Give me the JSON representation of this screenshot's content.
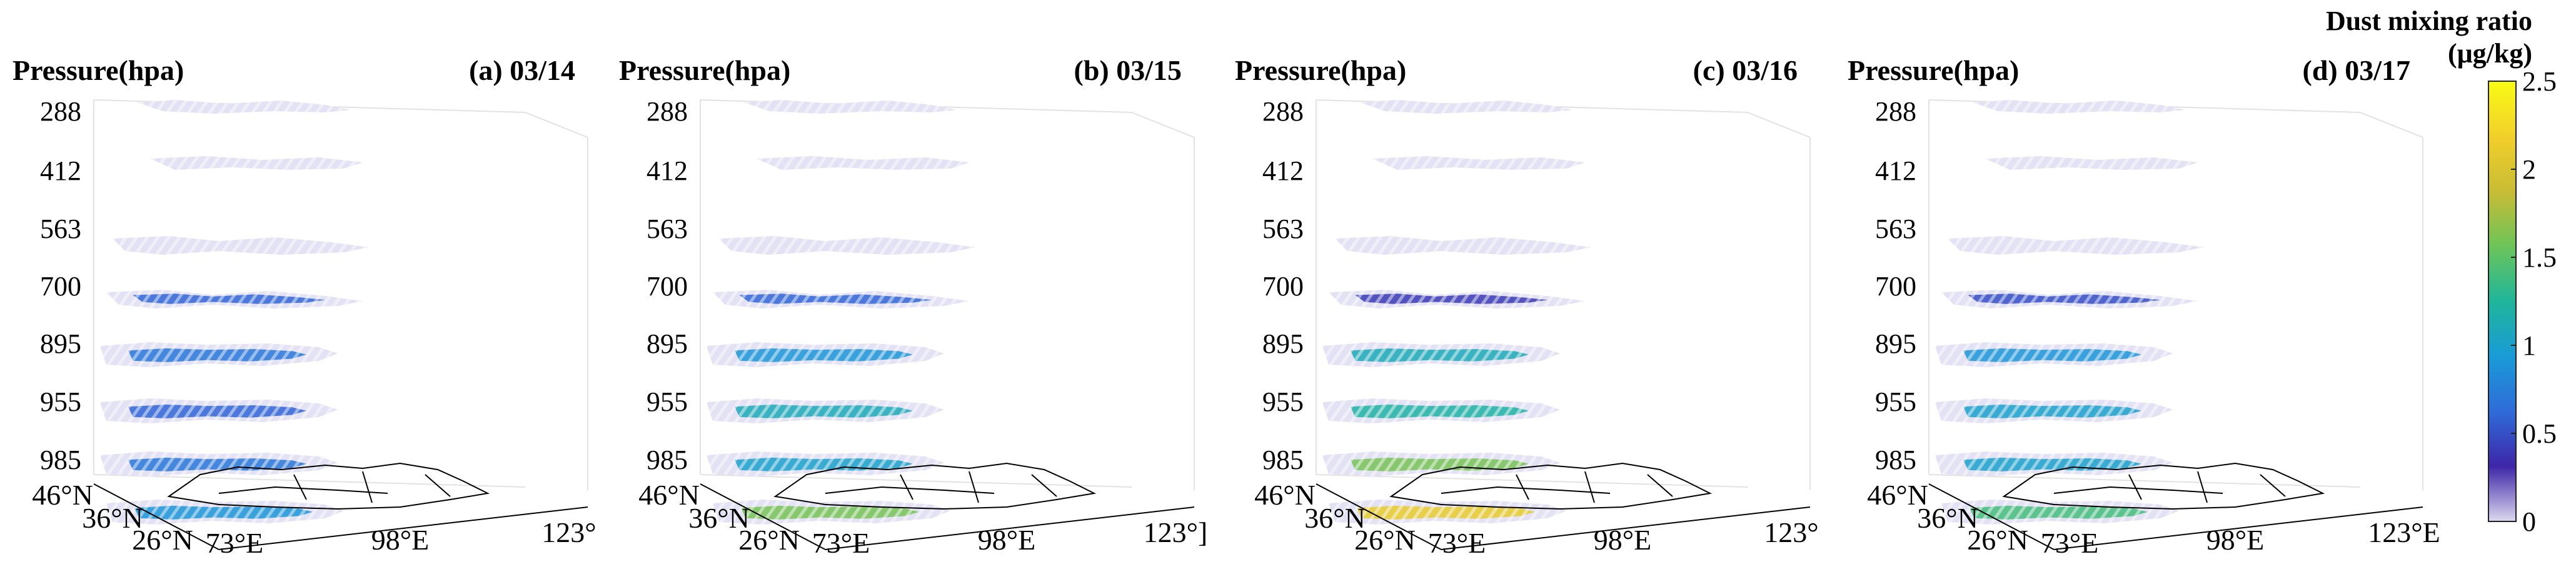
{
  "chart_data": [
    {
      "type": "3d-layered-contour",
      "title": "(a) 03/14",
      "zlabel": "Pressure(hpa)",
      "pressure_levels": [
        288,
        412,
        563,
        700,
        895,
        955,
        985
      ],
      "lat_ticks": [
        "46°N",
        "36°N",
        "26°N"
      ],
      "lon_ticks": [
        "73°E",
        "98°E",
        "123°"
      ],
      "layer_max": [
        0.1,
        0.1,
        0.2,
        0.6,
        0.7,
        0.6,
        0.7,
        0.9
      ]
    },
    {
      "type": "3d-layered-contour",
      "title": "(b) 03/15",
      "zlabel": "Pressure(hpa)",
      "pressure_levels": [
        288,
        412,
        563,
        700,
        895,
        955,
        985
      ],
      "lat_ticks": [
        "46°N",
        "36°N",
        "26°N"
      ],
      "lon_ticks": [
        "73°E",
        "98°E",
        "123°]"
      ],
      "layer_max": [
        0.1,
        0.1,
        0.2,
        0.6,
        0.9,
        1.1,
        1.0,
        1.6
      ]
    },
    {
      "type": "3d-layered-contour",
      "title": "(c) 03/16",
      "zlabel": "Pressure(hpa)",
      "pressure_levels": [
        288,
        412,
        563,
        700,
        895,
        955,
        985
      ],
      "lat_ticks": [
        "46°N",
        "36°N",
        "26°N"
      ],
      "lon_ticks": [
        "73°E",
        "98°E",
        "123°"
      ],
      "layer_max": [
        0.1,
        0.1,
        0.2,
        0.4,
        1.1,
        1.2,
        1.6,
        2.1
      ]
    },
    {
      "type": "3d-layered-contour",
      "title": "(d) 03/17",
      "zlabel": "Pressure(hpa)",
      "pressure_levels": [
        288,
        412,
        563,
        700,
        895,
        955,
        985
      ],
      "lat_ticks": [
        "46°N",
        "36°N",
        "26°N"
      ],
      "lon_ticks": [
        "73°E",
        "98°E",
        "123°E"
      ],
      "layer_max": [
        0.1,
        0.1,
        0.2,
        0.5,
        0.9,
        1.0,
        1.0,
        1.4
      ]
    }
  ],
  "colorbar": {
    "title_line1": "Dust mixing ratio",
    "title_line2": "(μg/kg)",
    "range": [
      0,
      2.5
    ],
    "ticks": [
      "0",
      "0.5",
      "1",
      "1.5",
      "2",
      "2.5"
    ],
    "colors": [
      "#dcd8ee",
      "#3e26a8",
      "#2f6bd9",
      "#1a9bd7",
      "#20b59a",
      "#6cc45a",
      "#c9bc35",
      "#f2cf2a",
      "#f9fb15"
    ]
  }
}
